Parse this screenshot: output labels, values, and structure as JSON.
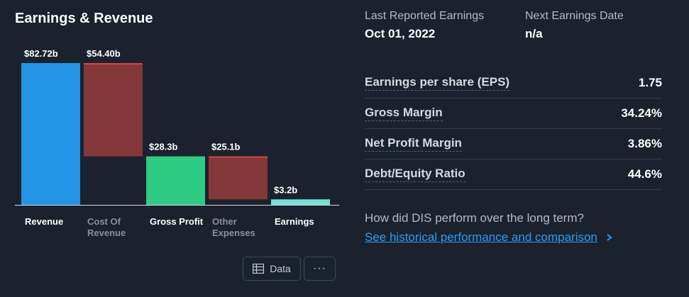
{
  "title": "Earnings & Revenue",
  "chart_data": {
    "type": "bar",
    "subtype": "waterfall",
    "categories": [
      "Revenue",
      "Cost Of Revenue",
      "Gross Profit",
      "Other Expenses",
      "Earnings"
    ],
    "values": [
      82.72,
      54.4,
      28.3,
      25.1,
      3.2
    ],
    "labels": [
      "$82.72b",
      "$54.40b",
      "$28.3b",
      "$25.1b",
      "$3.2b"
    ],
    "kinds": [
      "total",
      "decrease",
      "total",
      "decrease",
      "total"
    ],
    "colors": [
      "#2394e6",
      "#843739",
      "#2ecb82",
      "#843739",
      "#74e3d6"
    ],
    "label_colors": [
      "#ffffff",
      "#8a9099",
      "#ffffff",
      "#8a9099",
      "#ffffff"
    ],
    "unit": "b",
    "ylim": [
      0,
      82.72
    ]
  },
  "buttons": {
    "data_label": "Data",
    "more_label": "···"
  },
  "last_reported": {
    "label": "Last Reported Earnings",
    "value": "Oct 01, 2022"
  },
  "next_earnings": {
    "label": "Next Earnings Date",
    "value": "n/a"
  },
  "metrics": [
    {
      "label": "Earnings per share (EPS)",
      "value": "1.75"
    },
    {
      "label": "Gross Margin",
      "value": "34.24%"
    },
    {
      "label": "Net Profit Margin",
      "value": "3.86%"
    },
    {
      "label": "Debt/Equity Ratio",
      "value": "44.6%"
    }
  ],
  "question": "How did DIS perform over the long term?",
  "link_text": "See historical performance and comparison"
}
